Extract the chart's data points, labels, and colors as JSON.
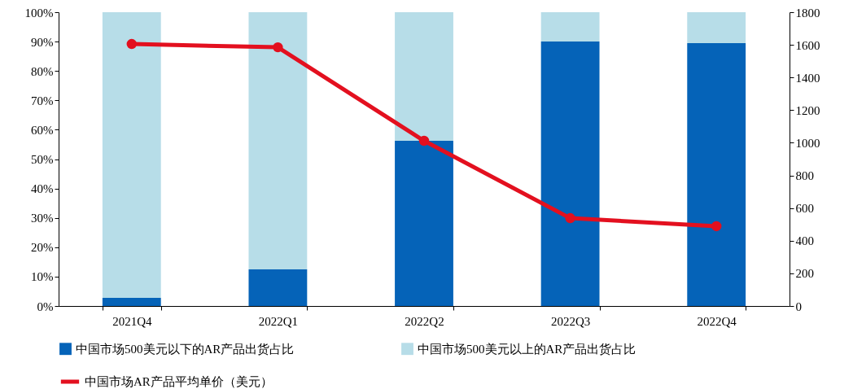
{
  "chart_data": {
    "type": "bar",
    "stacked": true,
    "categories": [
      "2021Q4",
      "2022Q1",
      "2022Q2",
      "2022Q3",
      "2022Q4"
    ],
    "series": [
      {
        "name": "中国市场500美元以下的AR产品出货占比",
        "color": "#0563b8",
        "values": [
          2.8,
          12.5,
          56.2,
          90.0,
          89.5
        ]
      },
      {
        "name": "中国市场500美元以上的AR产品出货占比",
        "color": "#b7dde8",
        "values": [
          97.2,
          87.5,
          43.8,
          10.0,
          10.5
        ]
      },
      {
        "name": "中国市场AR产品平均单价（美元）",
        "type": "line",
        "axis": "y2",
        "color": "#e3101f",
        "values": [
          1605,
          1585,
          1012,
          538,
          489
        ]
      }
    ],
    "ylim": [
      0,
      100
    ],
    "yticks": [
      {
        "value": 0,
        "label": "0%"
      },
      {
        "value": 10,
        "label": "10%"
      },
      {
        "value": 20,
        "label": "20%"
      },
      {
        "value": 30,
        "label": "30%"
      },
      {
        "value": 40,
        "label": "40%"
      },
      {
        "value": 50,
        "label": "50%"
      },
      {
        "value": 60,
        "label": "60%"
      },
      {
        "value": 70,
        "label": "70%"
      },
      {
        "value": 80,
        "label": "80%"
      },
      {
        "value": 90,
        "label": "90%"
      },
      {
        "value": 100,
        "label": "100%"
      }
    ],
    "y2lim": [
      0,
      1800
    ],
    "y2ticks": [
      0,
      200,
      400,
      600,
      800,
      1000,
      1200,
      1400,
      1600,
      1800
    ],
    "marker": "circle",
    "line_style": "solid",
    "legend": "bottom",
    "grid": false
  }
}
